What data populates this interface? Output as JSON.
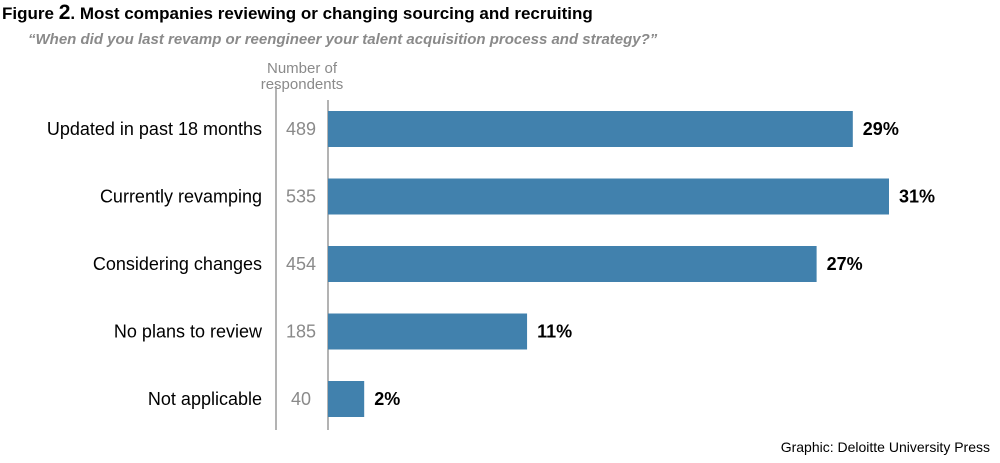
{
  "figure": {
    "label": "Figure",
    "number": "2",
    "title": ". Most companies reviewing or changing sourcing and recruiting",
    "subtitle": "“When did you last revamp or reengineer your talent acquisition process and strategy?”"
  },
  "respondents_header": "Number of respondents",
  "credit": "Graphic: Deloitte University Press",
  "colors": {
    "bar": "#4181ad",
    "respondents_text": "#8a8a8a",
    "axis": "#9a9a9a"
  },
  "chart_data": {
    "type": "bar",
    "orientation": "horizontal",
    "categories": [
      "Updated in past 18 months",
      "Currently revamping",
      "Considering changes",
      "No plans to review",
      "Not applicable"
    ],
    "values": [
      29,
      31,
      27,
      11,
      2
    ],
    "value_labels": [
      "29%",
      "31%",
      "27%",
      "11%",
      "2%"
    ],
    "respondents": [
      "489",
      "535",
      "454",
      "185",
      "40"
    ],
    "unit": "%",
    "xlim": [
      0,
      31
    ],
    "grid": false,
    "legend": "none"
  }
}
